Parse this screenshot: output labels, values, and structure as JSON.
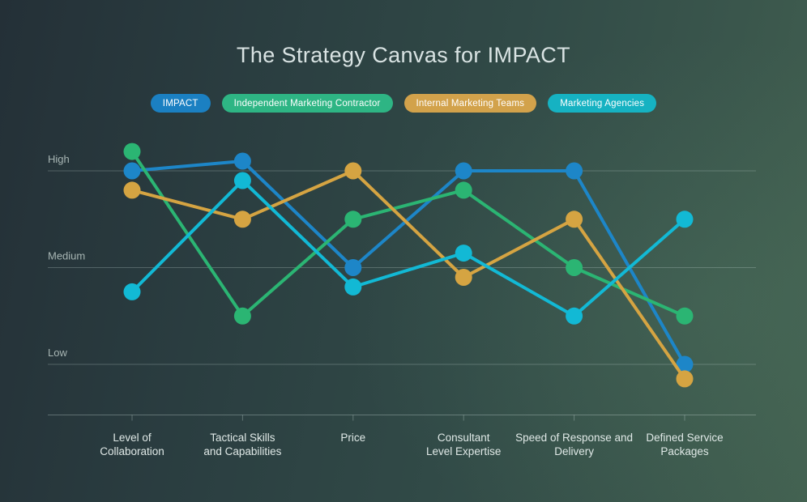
{
  "title": "The Strategy Canvas for IMPACT",
  "legend": {
    "position": "top",
    "items": [
      {
        "label": "IMPACT",
        "color": "#1b80c2"
      },
      {
        "label": "Independent Marketing Contractor",
        "color": "#2eb584"
      },
      {
        "label": "Internal Marketing Teams",
        "color": "#d2a24b"
      },
      {
        "label": "Marketing Agencies",
        "color": "#16b2c2"
      }
    ]
  },
  "chart_data": {
    "type": "line",
    "title": "The Strategy Canvas for IMPACT",
    "categories": [
      "Level of Collaboration",
      "Tactical Skills and Capabilities",
      "Price",
      "Consultant Level Expertise",
      "Speed of Response and Delivery",
      "Defined Service Packages"
    ],
    "category_label_lines": [
      [
        "Level of",
        "Collaboration"
      ],
      [
        "Tactical Skills",
        "and Capabilities"
      ],
      [
        "Price"
      ],
      [
        "Consultant",
        "Level Expertise"
      ],
      [
        "Speed of Response and",
        "Delivery"
      ],
      [
        "Defined Service",
        "Packages"
      ]
    ],
    "y_ticks": [
      {
        "label": "High",
        "value": 3
      },
      {
        "label": "Medium",
        "value": 2
      },
      {
        "label": "Low",
        "value": 1
      }
    ],
    "ylim": [
      0.6,
      3.4
    ],
    "grid": "horizontal",
    "legend_position": "top",
    "series": [
      {
        "name": "IMPACT",
        "color": "#1d86c8",
        "values": [
          3.0,
          3.1,
          2.0,
          3.0,
          3.0,
          1.0
        ]
      },
      {
        "name": "Independent Marketing Contractor",
        "color": "#2bb573",
        "values": [
          3.2,
          1.5,
          2.5,
          2.8,
          2.0,
          1.5
        ]
      },
      {
        "name": "Internal Marketing Teams",
        "color": "#d5a442",
        "values": [
          2.8,
          2.5,
          3.0,
          1.9,
          2.5,
          0.85
        ]
      },
      {
        "name": "Marketing Agencies",
        "color": "#12b9d5",
        "values": [
          1.75,
          2.9,
          1.8,
          2.15,
          1.5,
          2.5
        ]
      }
    ]
  }
}
